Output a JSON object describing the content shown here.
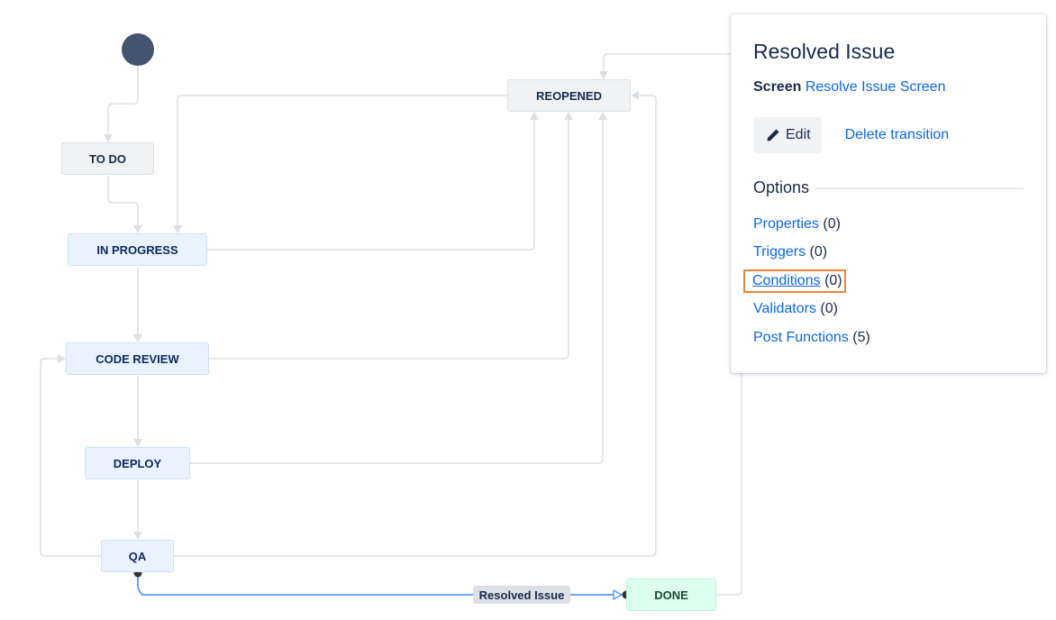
{
  "diagram": {
    "nodes": {
      "todo": "TO DO",
      "in_progress": "IN PROGRESS",
      "code_review": "CODE REVIEW",
      "deploy": "DEPLOY",
      "qa": "QA",
      "reopened": "REOPENED",
      "done": "DONE"
    },
    "selected_transition_label": "Resolved Issue",
    "colors": {
      "line": "#dcdfe4",
      "selected": "#388bff",
      "start": "#44546f"
    }
  },
  "panel": {
    "title": "Resolved Issue",
    "screen_label": "Screen",
    "screen_value": "Resolve Issue Screen",
    "edit_label": "Edit",
    "delete_label": "Delete transition",
    "options_heading": "Options",
    "options": [
      {
        "label": "Properties",
        "count": "(0)"
      },
      {
        "label": "Triggers",
        "count": "(0)"
      },
      {
        "label": "Conditions",
        "count": "(0)",
        "highlighted": true
      },
      {
        "label": "Validators",
        "count": "(0)"
      },
      {
        "label": "Post Functions",
        "count": "(5)"
      }
    ]
  }
}
